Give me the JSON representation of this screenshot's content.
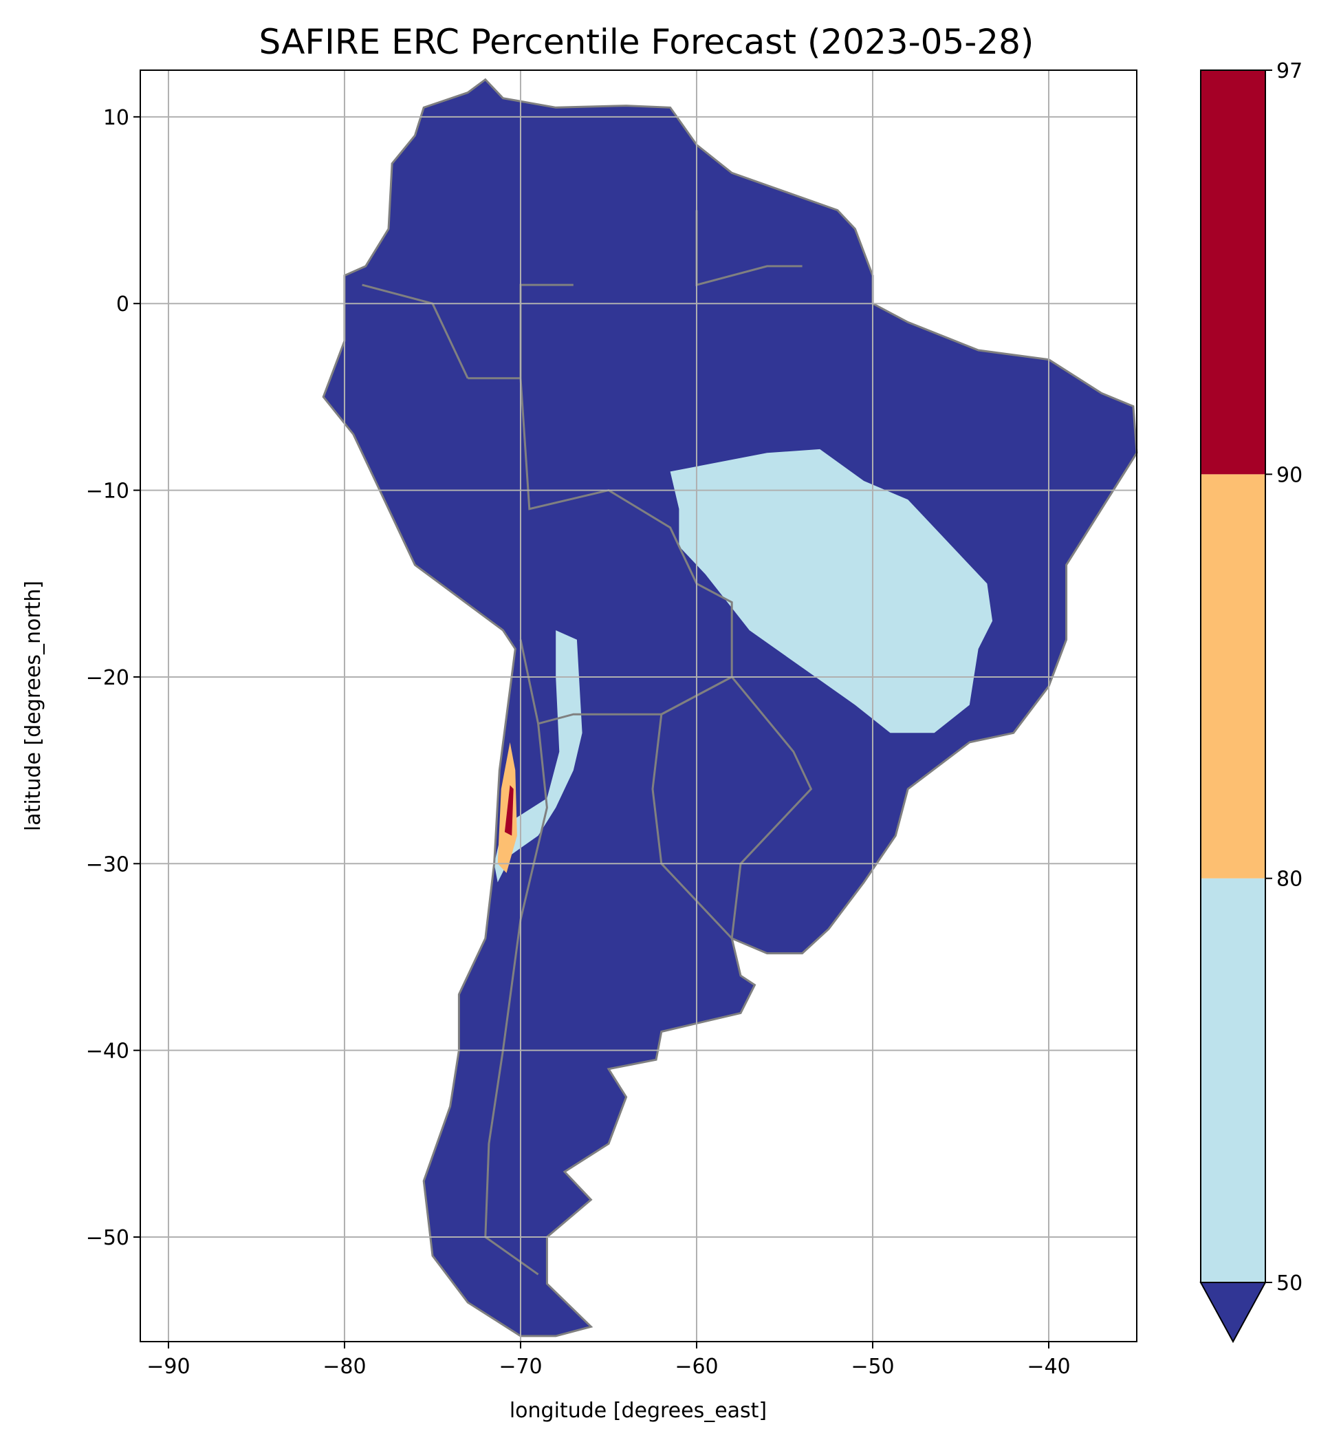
{
  "chart_data": {
    "type": "heatmap",
    "title": "SAFIRE ERC Percentile Forecast (2023-05-28)",
    "xlabel": "longitude [degrees_east]",
    "ylabel": "latitude [degrees_north]",
    "xlim": [
      -91.6,
      -35.0
    ],
    "ylim": [
      -55.6,
      12.5
    ],
    "xticks": [
      -90,
      -80,
      -70,
      -60,
      -50,
      -40
    ],
    "xtick_labels": [
      "−90",
      "−80",
      "−70",
      "−60",
      "−50",
      "−40"
    ],
    "yticks": [
      10,
      0,
      -10,
      -20,
      -30,
      -40,
      -50
    ],
    "ytick_labels": [
      "10",
      "0",
      "−10",
      "−20",
      "−30",
      "−40",
      "−50"
    ],
    "grid": true,
    "colorbar": {
      "levels": [
        50,
        80,
        90,
        97
      ],
      "tick_labels": [
        "50",
        "80",
        "90",
        "97"
      ],
      "colors": [
        "#bde2ec",
        "#fdbf71",
        "#a50026"
      ],
      "under_color": "#313695",
      "extend": "min"
    },
    "land_color": "#313695",
    "border_color": "#808080",
    "summary": "Most of South America below 50th percentile; central Brazil region 50-80; small Chilean coastal area near 26-30S reaching 80-97"
  }
}
